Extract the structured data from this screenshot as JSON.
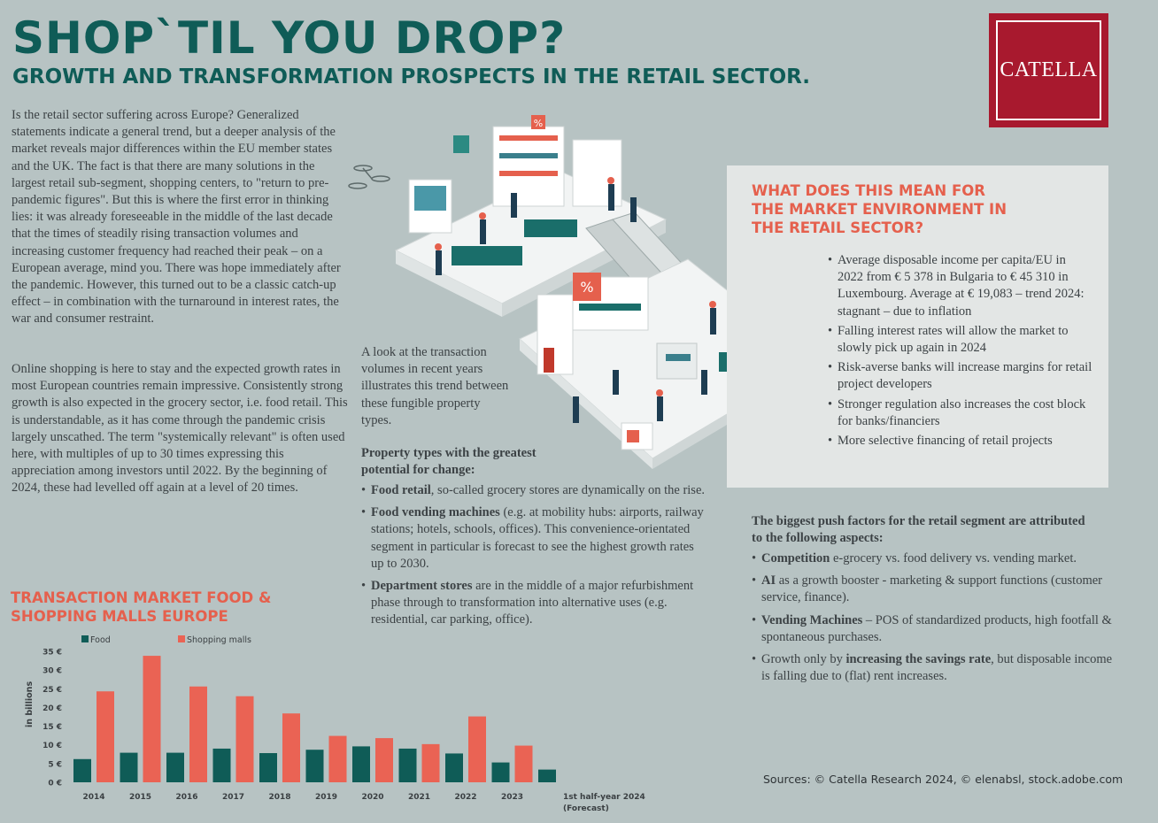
{
  "header": {
    "title": "SHOP`TIL YOU DROP?",
    "subtitle": "GROWTH AND TRANSFORMATION PROSPECTS IN THE RETAIL SECTOR."
  },
  "logo": {
    "text": "CATELLA",
    "color": "#a8192e"
  },
  "intro": {
    "paragraph1": "Is the retail sector suffering across Europe? Generalized statements indicate a general trend, but a deeper analysis of the market reveals major differences within the EU member states and the UK. The fact is that there are many solutions in the largest retail sub-segment, shopping centers, to \"return to pre-pandemic figures\". But this is where the first error in thinking lies: it was already foreseeable in the middle of the last decade that the times of steadily rising transaction volumes and increasing customer frequency had reached their peak – on a European average, mind you. There was hope immediately after the pandemic. However, this turned out to be a classic catch-up effect – in combination with the turnaround in interest rates, the war and consumer restraint.",
    "paragraph2": "Online shopping is here to stay and the expected growth rates in most European countries remain impressive. Consistently strong growth is also expected in the grocery sector, i.e. food retail. This is understandable, as it has come through the pandemic crisis largely unscathed. The term \"systemically relevant\" is often used here, with multiples of up to 30 times expressing this appreciation among investors until 2022. By the beginning of 2024, these had levelled off again at a level of 20 times."
  },
  "middle": {
    "intro": "A look at the transaction volumes in recent years illustrates this trend between these fungible property types.",
    "property_heading": "Property types with the greatest potential for change:",
    "property_items": [
      {
        "bold": "Food retail",
        "text": ", so-called grocery stores are dynamically on the rise."
      },
      {
        "bold": "Food vending machines",
        "text": " (e.g. at mobility hubs: airports, railway stations; hotels, schools, offices). This convenience-orientated segment in particular is forecast to see the highest growth rates up to 2030."
      },
      {
        "bold": "Department stores",
        "text": " are in the middle of a major refurbishment phase through to transformation into alternative uses (e.g. residential, car parking, office)."
      }
    ]
  },
  "market_box": {
    "title": "WHAT DOES THIS MEAN FOR THE MARKET ENVIRONMENT IN THE RETAIL SECTOR?",
    "items": [
      "Average disposable income per capita/EU in 2022 from € 5 378 in Bulgaria to € 45 310 in Luxembourg. Average at € 19,083 – trend 2024: stagnant – due to inflation",
      "Falling interest rates will allow the market to slowly pick up again in 2024",
      "Risk-averse banks will increase margins for retail project developers",
      "Stronger regulation also increases the cost block for banks/financiers",
      "More selective financing of retail projects"
    ]
  },
  "push_factors": {
    "heading": "The biggest push factors for the retail segment are attributed to the following aspects:",
    "items": [
      {
        "bold": "Competition",
        "text": " e-grocery vs. food delivery vs. vending market."
      },
      {
        "bold": "AI",
        "text": " as a growth booster - marketing & support functions (customer service, finance)."
      },
      {
        "bold": "Vending Machines",
        "text": " – POS of standardized products, high footfall & spontaneous purchases."
      },
      {
        "pre": "Growth only by ",
        "bold": "increasing the savings rate",
        "text": ", but disposable income is falling due to (flat) rent increases."
      }
    ]
  },
  "sources": "Sources: © Catella Research 2024, © elenabsl, stock.adobe.com",
  "chart_title": "TRANSACTION MARKET FOOD & SHOPPING MALLS EUROPE",
  "chart_data": {
    "type": "bar",
    "title": "TRANSACTION MARKET FOOD & SHOPPING MALLS EUROPE",
    "categories": [
      "2014",
      "2015",
      "2016",
      "2017",
      "2018",
      "2019",
      "2020",
      "2021",
      "2022",
      "2023",
      "1st half-year 2024 (Forecast)"
    ],
    "series": [
      {
        "name": "Food",
        "color": "#0f5c57",
        "values": [
          6.2,
          7.9,
          7.9,
          9.0,
          7.8,
          8.7,
          9.6,
          9.0,
          7.7,
          5.3,
          3.4
        ]
      },
      {
        "name": "Shopping malls",
        "color": "#ea6354",
        "values": [
          24.3,
          33.8,
          25.6,
          23.0,
          18.4,
          12.4,
          11.8,
          10.2,
          17.6,
          9.8,
          null
        ]
      }
    ],
    "ylabel": "in billions",
    "yticks": [
      "0 €",
      "5 €",
      "10 €",
      "15 €",
      "20 €",
      "25 €",
      "30 €",
      "35 €"
    ],
    "ylim": [
      0,
      35
    ],
    "legend": "top-left",
    "grid": false
  }
}
